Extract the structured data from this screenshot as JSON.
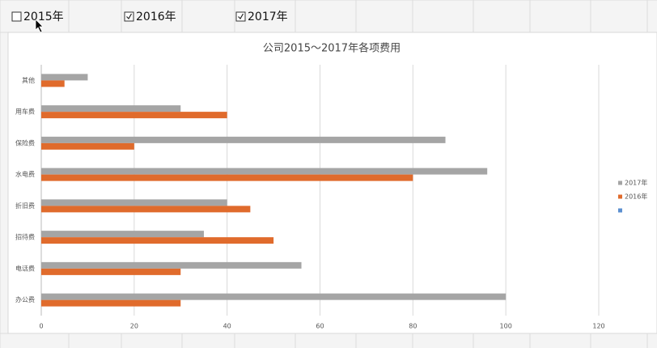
{
  "checkboxes": [
    {
      "label": "2015年",
      "checked": false
    },
    {
      "label": "2016年",
      "checked": true
    },
    {
      "label": "2017年",
      "checked": true
    }
  ],
  "chart_data": {
    "type": "barh",
    "title": "公司2015～2017年各项费用",
    "categories": [
      "办公费",
      "电话费",
      "招待费",
      "折旧费",
      "水电费",
      "保险费",
      "用车费",
      "其他"
    ],
    "series": [
      {
        "name": "2017年",
        "color": "#a5a5a5",
        "values": [
          100,
          56,
          35,
          40,
          96,
          87,
          30,
          10
        ]
      },
      {
        "name": "2016年",
        "color": "#e06b2c",
        "values": [
          30,
          30,
          50,
          45,
          80,
          20,
          40,
          5
        ]
      }
    ],
    "xlim": [
      0,
      120
    ],
    "xticks": [
      0,
      20,
      40,
      60,
      80,
      100,
      120
    ],
    "grid": true,
    "legend": "right"
  }
}
